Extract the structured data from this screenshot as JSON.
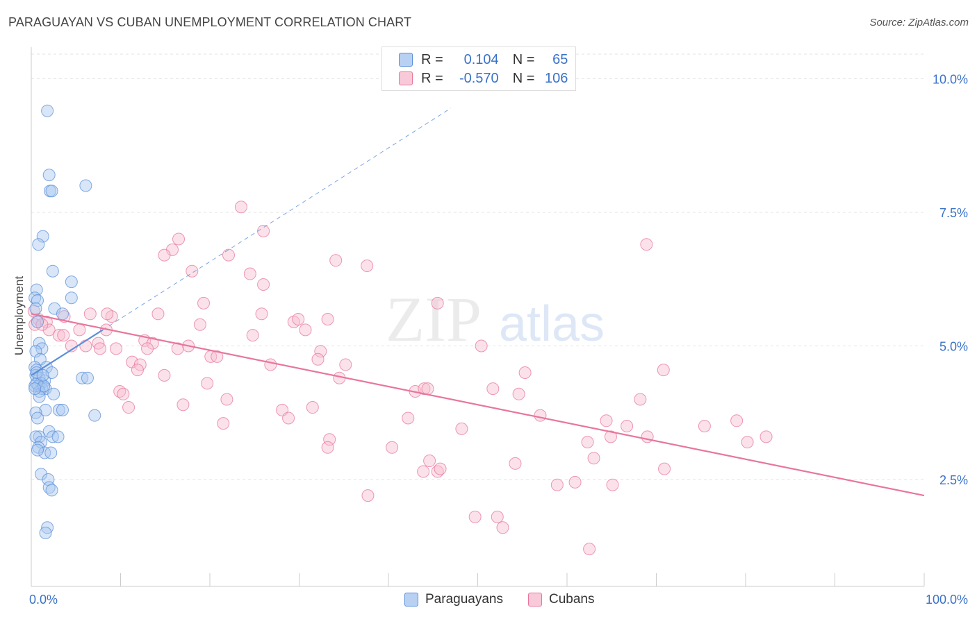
{
  "header": {
    "title": "PARAGUAYAN VS CUBAN UNEMPLOYMENT CORRELATION CHART",
    "source": "Source: ZipAtlas.com"
  },
  "watermark": {
    "zip": "ZIP",
    "atlas": "atlas"
  },
  "legend": {
    "rows": [
      {
        "r_label": "R =",
        "r_value": "0.104",
        "n_label": "N =",
        "n_value": "65",
        "color": "#5b8fd9"
      },
      {
        "r_label": "R =",
        "r_value": "-0.570",
        "n_label": "N =",
        "n_value": "106",
        "color": "#e8769b"
      }
    ],
    "bottom": [
      "Paraguayans",
      "Cubans"
    ]
  },
  "chart_data": {
    "type": "scatter",
    "title": "PARAGUAYAN VS CUBAN UNEMPLOYMENT CORRELATION CHART",
    "xlabel": "",
    "ylabel": "Unemployment",
    "xlim": [
      0,
      100
    ],
    "ylim": [
      0.5,
      10.5
    ],
    "x_tick_labels": [
      "0.0%",
      "100.0%"
    ],
    "y_ticks": [
      2.5,
      5.0,
      7.5,
      10.0
    ],
    "y_tick_labels": [
      "2.5%",
      "5.0%",
      "7.5%",
      "10.0%"
    ],
    "grid": true,
    "series": [
      {
        "name": "Paraguayans",
        "color": "#5b8fd9",
        "fill": "#a9c7f0",
        "trend": {
          "x": [
            0.0,
            8.0
          ],
          "y": [
            4.45,
            5.3
          ]
        },
        "trend_dashed": {
          "x": [
            8.0,
            47.0
          ],
          "y": [
            5.3,
            9.45
          ]
        },
        "points": [
          [
            1.8,
            9.4
          ],
          [
            2.0,
            8.2
          ],
          [
            2.1,
            7.9
          ],
          [
            2.3,
            7.9
          ],
          [
            6.1,
            8.0
          ],
          [
            1.3,
            7.05
          ],
          [
            0.8,
            6.9
          ],
          [
            2.4,
            6.4
          ],
          [
            4.5,
            6.2
          ],
          [
            0.6,
            6.05
          ],
          [
            0.4,
            5.9
          ],
          [
            0.7,
            5.85
          ],
          [
            4.5,
            5.9
          ],
          [
            0.5,
            5.7
          ],
          [
            2.6,
            5.7
          ],
          [
            3.5,
            5.6
          ],
          [
            0.7,
            5.45
          ],
          [
            0.9,
            5.05
          ],
          [
            1.2,
            4.95
          ],
          [
            0.5,
            4.9
          ],
          [
            1.0,
            4.75
          ],
          [
            1.7,
            4.6
          ],
          [
            2.3,
            4.5
          ],
          [
            0.4,
            4.6
          ],
          [
            0.6,
            4.55
          ],
          [
            0.5,
            4.45
          ],
          [
            0.9,
            4.4
          ],
          [
            1.5,
            4.35
          ],
          [
            1.1,
            4.3
          ],
          [
            0.4,
            4.25
          ],
          [
            0.8,
            4.25
          ],
          [
            1.2,
            4.2
          ],
          [
            1.6,
            4.2
          ],
          [
            0.9,
            4.15
          ],
          [
            2.5,
            4.1
          ],
          [
            5.7,
            4.4
          ],
          [
            6.3,
            4.4
          ],
          [
            0.6,
            4.3
          ],
          [
            1.4,
            4.25
          ],
          [
            0.9,
            4.05
          ],
          [
            1.6,
            3.8
          ],
          [
            3.1,
            3.8
          ],
          [
            3.5,
            3.8
          ],
          [
            7.1,
            3.7
          ],
          [
            0.5,
            3.75
          ],
          [
            0.7,
            3.65
          ],
          [
            2.0,
            3.4
          ],
          [
            0.9,
            3.3
          ],
          [
            2.4,
            3.3
          ],
          [
            3.0,
            3.3
          ],
          [
            0.5,
            3.3
          ],
          [
            1.1,
            3.2
          ],
          [
            0.8,
            3.1
          ],
          [
            1.5,
            3.0
          ],
          [
            2.2,
            3.0
          ],
          [
            0.7,
            3.05
          ],
          [
            1.1,
            2.6
          ],
          [
            1.9,
            2.5
          ],
          [
            2.0,
            2.35
          ],
          [
            2.3,
            2.3
          ],
          [
            1.8,
            1.6
          ],
          [
            1.6,
            1.5
          ],
          [
            0.6,
            4.5
          ],
          [
            1.3,
            4.45
          ],
          [
            0.4,
            4.2
          ]
        ]
      },
      {
        "name": "Cubans",
        "color": "#e8769b",
        "fill": "#f6bfd0",
        "trend": {
          "x": [
            0.0,
            100.0
          ],
          "y": [
            5.6,
            2.2
          ]
        },
        "points": [
          [
            23.5,
            7.6
          ],
          [
            26.0,
            7.15
          ],
          [
            16.5,
            7.0
          ],
          [
            15.8,
            6.8
          ],
          [
            14.9,
            6.7
          ],
          [
            22.1,
            6.7
          ],
          [
            34.1,
            6.6
          ],
          [
            37.6,
            6.5
          ],
          [
            18.0,
            6.4
          ],
          [
            24.5,
            6.35
          ],
          [
            26.0,
            6.15
          ],
          [
            68.9,
            6.9
          ],
          [
            19.3,
            5.8
          ],
          [
            45.5,
            5.8
          ],
          [
            25.8,
            5.6
          ],
          [
            14.2,
            5.6
          ],
          [
            9.0,
            5.55
          ],
          [
            6.6,
            5.6
          ],
          [
            8.5,
            5.6
          ],
          [
            3.7,
            5.55
          ],
          [
            29.4,
            5.45
          ],
          [
            29.9,
            5.5
          ],
          [
            33.2,
            5.5
          ],
          [
            0.8,
            5.5
          ],
          [
            1.7,
            5.45
          ],
          [
            0.4,
            5.4
          ],
          [
            2.0,
            5.3
          ],
          [
            5.4,
            5.3
          ],
          [
            8.4,
            5.3
          ],
          [
            18.9,
            5.4
          ],
          [
            24.8,
            5.2
          ],
          [
            30.7,
            5.3
          ],
          [
            3.1,
            5.2
          ],
          [
            3.6,
            5.2
          ],
          [
            7.5,
            5.05
          ],
          [
            12.7,
            5.1
          ],
          [
            13.6,
            5.05
          ],
          [
            4.5,
            5.0
          ],
          [
            6.1,
            5.0
          ],
          [
            7.7,
            4.95
          ],
          [
            9.5,
            4.95
          ],
          [
            13.0,
            4.95
          ],
          [
            16.4,
            4.95
          ],
          [
            17.6,
            5.0
          ],
          [
            32.4,
            4.9
          ],
          [
            50.4,
            5.0
          ],
          [
            11.3,
            4.7
          ],
          [
            12.2,
            4.65
          ],
          [
            11.9,
            4.55
          ],
          [
            20.1,
            4.8
          ],
          [
            20.8,
            4.8
          ],
          [
            26.8,
            4.65
          ],
          [
            35.2,
            4.65
          ],
          [
            32.1,
            4.75
          ],
          [
            14.9,
            4.45
          ],
          [
            34.5,
            4.4
          ],
          [
            55.3,
            4.5
          ],
          [
            70.8,
            4.55
          ],
          [
            9.9,
            4.15
          ],
          [
            10.3,
            4.1
          ],
          [
            19.7,
            4.3
          ],
          [
            43.0,
            4.15
          ],
          [
            44.0,
            4.2
          ],
          [
            44.4,
            4.2
          ],
          [
            51.7,
            4.2
          ],
          [
            54.6,
            4.1
          ],
          [
            21.9,
            4.0
          ],
          [
            68.2,
            4.0
          ],
          [
            10.9,
            3.85
          ],
          [
            17.0,
            3.9
          ],
          [
            28.1,
            3.8
          ],
          [
            31.5,
            3.85
          ],
          [
            28.8,
            3.65
          ],
          [
            42.2,
            3.65
          ],
          [
            57.0,
            3.7
          ],
          [
            64.4,
            3.6
          ],
          [
            79.0,
            3.6
          ],
          [
            21.5,
            3.55
          ],
          [
            66.7,
            3.5
          ],
          [
            75.4,
            3.5
          ],
          [
            48.2,
            3.45
          ],
          [
            33.4,
            3.25
          ],
          [
            33.2,
            3.1
          ],
          [
            40.4,
            3.1
          ],
          [
            62.3,
            3.2
          ],
          [
            64.9,
            3.3
          ],
          [
            69.0,
            3.3
          ],
          [
            80.2,
            3.2
          ],
          [
            82.3,
            3.3
          ],
          [
            43.9,
            2.65
          ],
          [
            44.6,
            2.85
          ],
          [
            45.5,
            2.65
          ],
          [
            45.8,
            2.7
          ],
          [
            54.2,
            2.8
          ],
          [
            63.0,
            2.9
          ],
          [
            70.9,
            2.7
          ],
          [
            58.9,
            2.4
          ],
          [
            60.9,
            2.45
          ],
          [
            65.1,
            2.4
          ],
          [
            37.7,
            2.2
          ],
          [
            49.7,
            1.8
          ],
          [
            52.2,
            1.8
          ],
          [
            52.8,
            1.6
          ],
          [
            62.5,
            1.2
          ],
          [
            0.3,
            5.65
          ],
          [
            1.2,
            5.4
          ]
        ]
      }
    ]
  }
}
